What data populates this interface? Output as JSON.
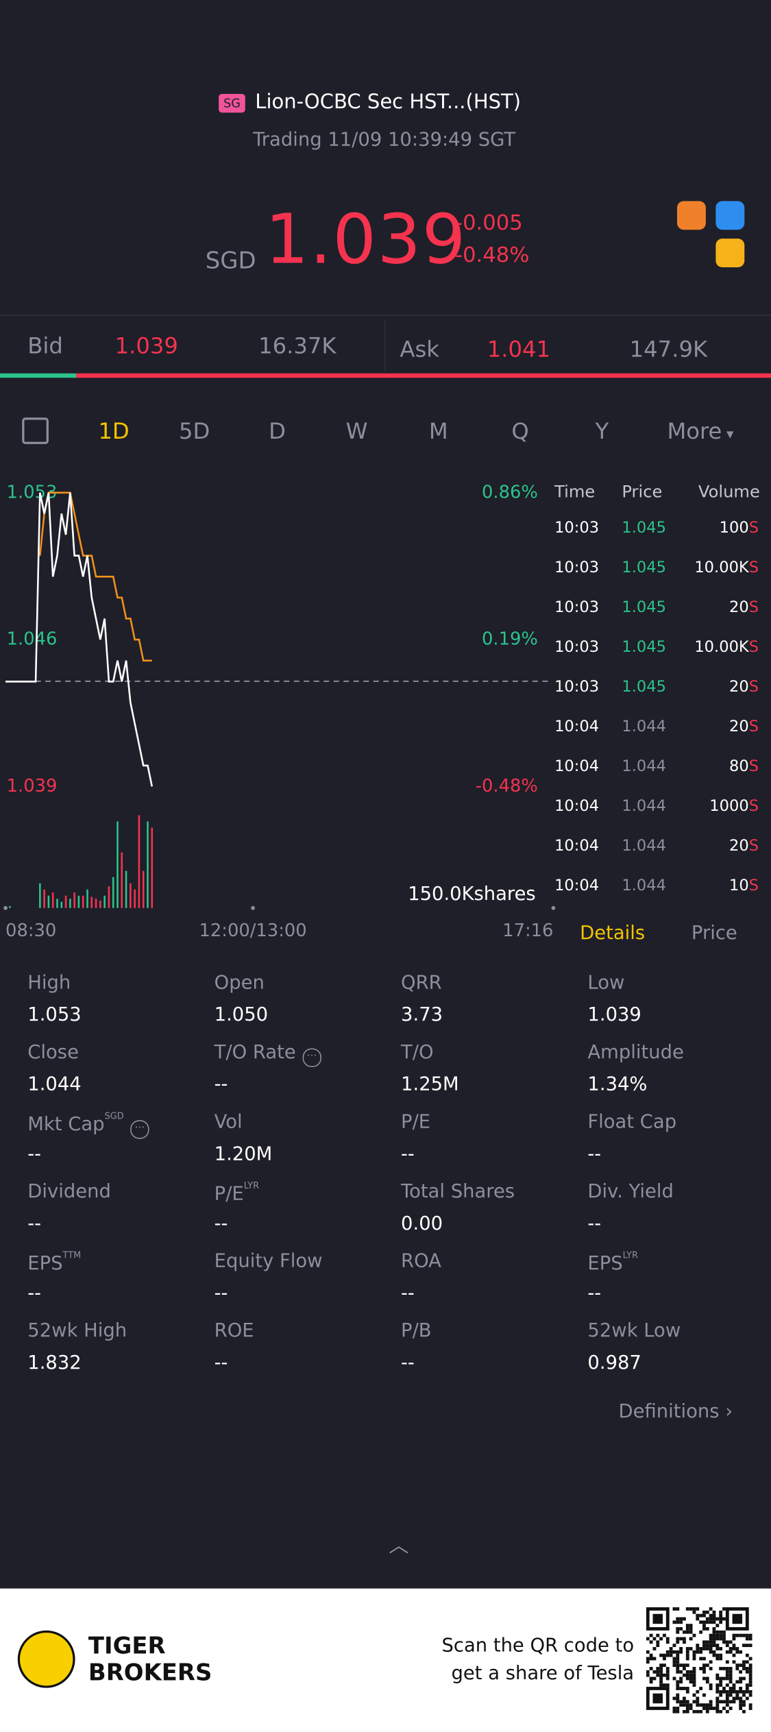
{
  "header": {
    "badge": "SG",
    "name": "Lion-OCBC Sec HST...(HST)",
    "status": "Trading 11/09 10:39:49 SGT"
  },
  "quote": {
    "currency": "SGD",
    "price": "1.039",
    "change": "-0.005",
    "change_pct": "-0.48%"
  },
  "bidask": {
    "bid_label": "Bid",
    "bid": "1.039",
    "bid_size": "16.37K",
    "ask_label": "Ask",
    "ask": "1.041",
    "ask_size": "147.9K"
  },
  "tabs": [
    "1D",
    "5D",
    "D",
    "W",
    "M",
    "Q",
    "Y",
    "More"
  ],
  "chart": {
    "ylim": [
      1.039,
      1.053
    ],
    "yticks": [
      1.053,
      1.046,
      1.039
    ],
    "y2lim": [
      -0.48,
      0.86
    ],
    "y2ticks": [
      {
        "value": 0.86,
        "label": "0.86%"
      },
      {
        "value": 0.19,
        "label": "0.19%"
      },
      {
        "value": -0.48,
        "label": "-0.48%"
      }
    ],
    "xlabels": [
      "08:30",
      "12:00/13:00",
      "17:16"
    ],
    "volume_scale": {
      "value": 150000,
      "label": "150.0Kshares"
    },
    "price": {
      "color": "#ffffff",
      "values": [
        1.044,
        1.044,
        1.044,
        1.044,
        1.044,
        1.044,
        1.044,
        1.044,
        1.053,
        1.052,
        1.053,
        1.049,
        1.05,
        1.052,
        1.051,
        1.053,
        1.05,
        1.05,
        1.049,
        1.05,
        1.048,
        1.047,
        1.046,
        1.047,
        1.044,
        1.044,
        1.045,
        1.044,
        1.045,
        1.043,
        1.042,
        1.041,
        1.04,
        1.04,
        1.039
      ]
    },
    "average": {
      "color": "#f0901c",
      "values": [
        null,
        null,
        null,
        null,
        null,
        null,
        null,
        null,
        1.05,
        1.052,
        1.053,
        1.053,
        1.053,
        1.053,
        1.053,
        1.053,
        1.052,
        1.051,
        1.05,
        1.05,
        1.05,
        1.049,
        1.049,
        1.049,
        1.049,
        1.049,
        1.048,
        1.048,
        1.047,
        1.047,
        1.046,
        1.046,
        1.045,
        1.045,
        1.045
      ]
    },
    "volume": {
      "up_color": "#2cc38c",
      "down_color": "#f5334f",
      "values": [
        0,
        3000,
        0,
        0,
        0,
        0,
        0,
        0,
        40000,
        30000,
        20000,
        25000,
        15000,
        10000,
        20000,
        15000,
        25000,
        20000,
        20000,
        30000,
        18000,
        15000,
        12000,
        20000,
        35000,
        50000,
        140000,
        90000,
        60000,
        40000,
        30000,
        150000,
        60000,
        140000,
        130000
      ]
    }
  },
  "trades": {
    "headers": [
      "Time",
      "Price",
      "Volume"
    ],
    "side": "S",
    "rows": [
      [
        "10:03",
        "1.045",
        "100"
      ],
      [
        "10:03",
        "1.045",
        "10.00K"
      ],
      [
        "10:03",
        "1.045",
        "20"
      ],
      [
        "10:03",
        "1.045",
        "10.00K"
      ],
      [
        "10:03",
        "1.045",
        "20"
      ],
      [
        "10:04",
        "1.044",
        "20"
      ],
      [
        "10:04",
        "1.044",
        "80"
      ],
      [
        "10:04",
        "1.044",
        "1000"
      ],
      [
        "10:04",
        "1.044",
        "20"
      ],
      [
        "10:04",
        "1.044",
        "10"
      ]
    ]
  },
  "panel_tabs": [
    "Details",
    "Price"
  ],
  "details": [
    [
      {
        "label": "High",
        "value": "1.053"
      },
      {
        "label": "Open",
        "value": "1.050"
      },
      {
        "label": "QRR",
        "value": "3.73"
      },
      {
        "label": "Low",
        "value": "1.039"
      }
    ],
    [
      {
        "label": "Close",
        "value": "1.044"
      },
      {
        "label": "T/O Rate",
        "value": "--"
      },
      {
        "label": "T/O",
        "value": "1.25M"
      },
      {
        "label": "Amplitude",
        "value": "1.34%"
      }
    ],
    [
      {
        "label": "Mkt Cap",
        "sup": "SGD",
        "value": "--"
      },
      {
        "label": "Vol",
        "value": "1.20M"
      },
      {
        "label": "P/E",
        "value": "--"
      },
      {
        "label": "Float Cap",
        "value": "--"
      }
    ],
    [
      {
        "label": "Dividend",
        "value": "--"
      },
      {
        "label": "P/E",
        "sup": "LYR",
        "value": "--"
      },
      {
        "label": "Total Shares",
        "value": "0.00"
      },
      {
        "label": "Div. Yield",
        "value": "--"
      }
    ],
    [
      {
        "label": "EPS",
        "sup": "TTM",
        "value": "--"
      },
      {
        "label": "Equity Flow",
        "value": "--"
      },
      {
        "label": "ROA",
        "value": "--"
      },
      {
        "label": "EPS",
        "sup": "LYR",
        "value": "--"
      }
    ],
    [
      {
        "label": "52wk High",
        "value": "1.832"
      },
      {
        "label": "ROE",
        "value": "--"
      },
      {
        "label": "P/B",
        "value": "--"
      },
      {
        "label": "52wk Low",
        "value": "0.987"
      }
    ]
  ],
  "definitions": "Definitions",
  "footer": {
    "brand_line1": "TIGER",
    "brand_line2": "BROKERS",
    "promo_line1": "Scan the QR code to",
    "promo_line2": "get a share of Tesla"
  }
}
